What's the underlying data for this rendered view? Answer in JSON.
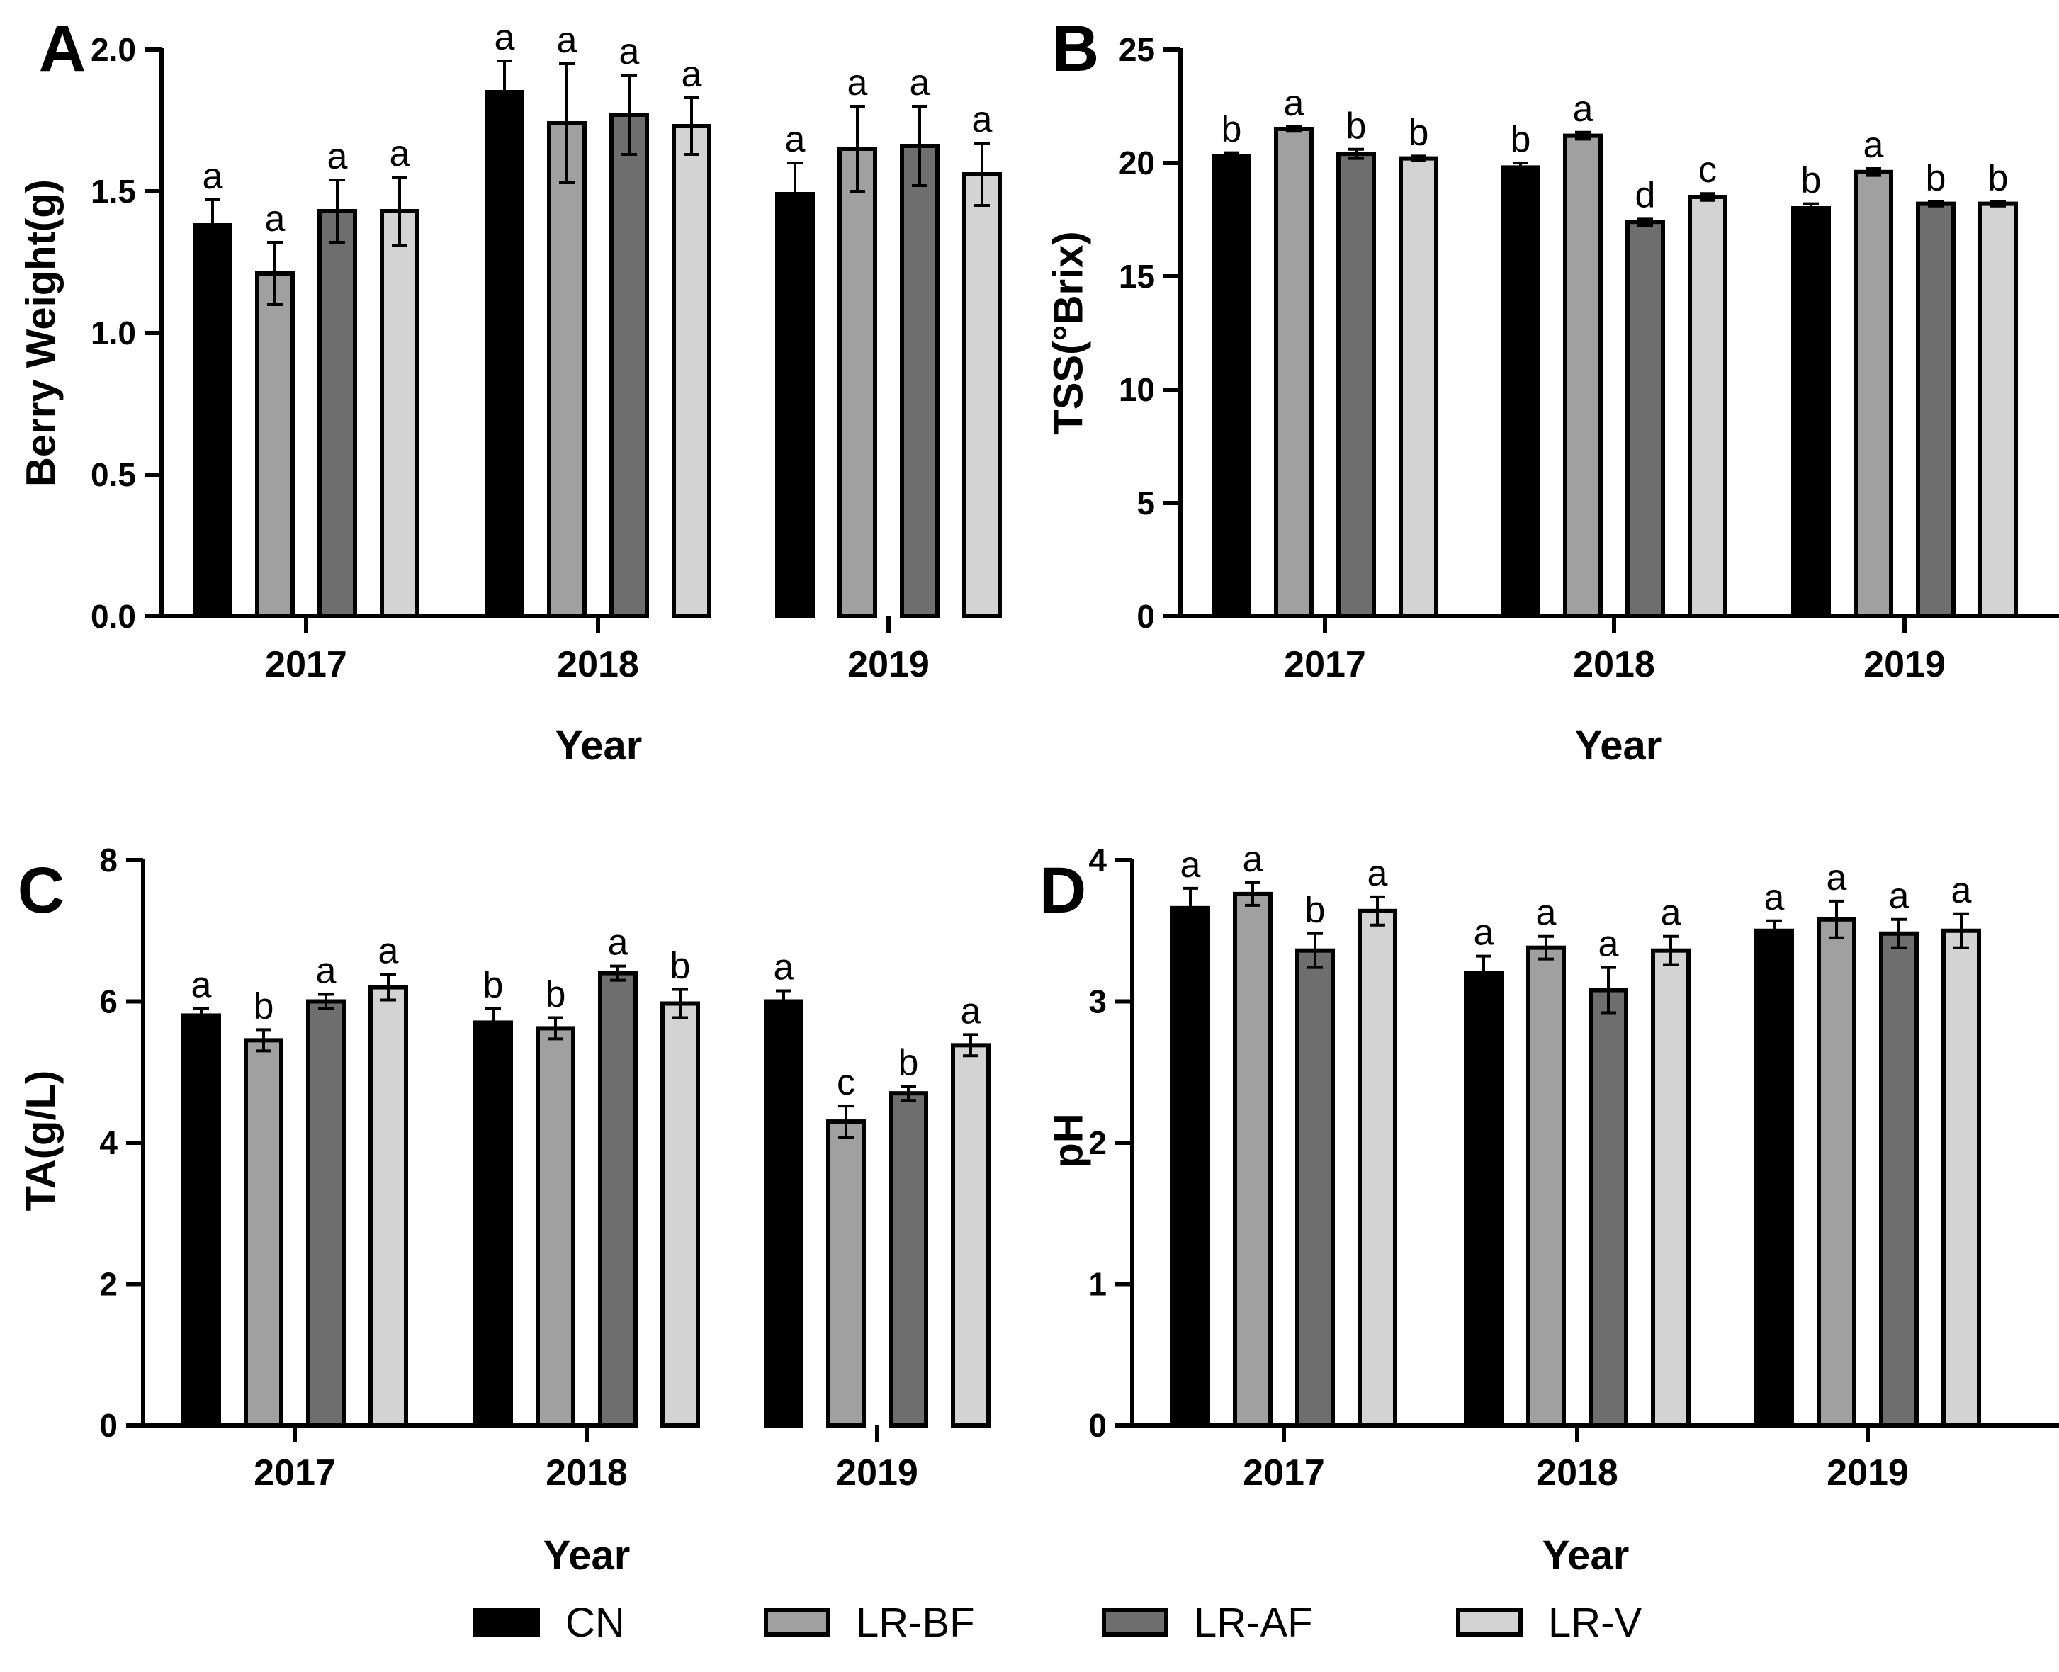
{
  "series_styles": [
    {
      "name": "CN",
      "color": "#000000"
    },
    {
      "name": "LR-BF",
      "color": "#a0a0a0"
    },
    {
      "name": "LR-AF",
      "color": "#6e6e6e"
    },
    {
      "name": "LR-V",
      "color": "#d3d3d3"
    }
  ],
  "legend": {
    "items": [
      "CN",
      "LR-BF",
      "LR-AF",
      "LR-V"
    ]
  },
  "chart_data": [
    {
      "panel": "A",
      "type": "bar",
      "title": "",
      "xlabel": "Year",
      "ylabel": "Berry Weight(g)",
      "categories": [
        "2017",
        "2018",
        "2019"
      ],
      "ylim": [
        0,
        2.0
      ],
      "yticks": [
        "0.0",
        "0.5",
        "1.0",
        "1.5",
        "2.0"
      ],
      "series": [
        {
          "name": "CN",
          "values": [
            1.38,
            1.85,
            1.49
          ],
          "errors": [
            0.09,
            0.11,
            0.11
          ],
          "letters": [
            "a",
            "a",
            "a"
          ]
        },
        {
          "name": "LR-BF",
          "values": [
            1.21,
            1.74,
            1.65
          ],
          "errors": [
            0.11,
            0.21,
            0.15
          ],
          "letters": [
            "a",
            "a",
            "a"
          ]
        },
        {
          "name": "LR-AF",
          "values": [
            1.43,
            1.77,
            1.66
          ],
          "errors": [
            0.11,
            0.14,
            0.14
          ],
          "letters": [
            "a",
            "a",
            "a"
          ]
        },
        {
          "name": "LR-V",
          "values": [
            1.43,
            1.73,
            1.56
          ],
          "errors": [
            0.12,
            0.1,
            0.11
          ],
          "letters": [
            "a",
            "a",
            "a"
          ]
        }
      ]
    },
    {
      "panel": "B",
      "type": "bar",
      "title": "",
      "xlabel": "Year",
      "ylabel": "TSS(°Brix)",
      "categories": [
        "2017",
        "2018",
        "2019"
      ],
      "ylim": [
        0,
        25
      ],
      "yticks": [
        "0",
        "5",
        "10",
        "15",
        "20",
        "25"
      ],
      "series": [
        {
          "name": "CN",
          "values": [
            20.3,
            19.8,
            18.0
          ],
          "errors": [
            0.15,
            0.2,
            0.2
          ],
          "letters": [
            "b",
            "b",
            "b"
          ]
        },
        {
          "name": "LR-BF",
          "values": [
            21.5,
            21.2,
            19.6
          ],
          "errors": [
            0.1,
            0.15,
            0.15
          ],
          "letters": [
            "a",
            "a",
            "a"
          ]
        },
        {
          "name": "LR-AF",
          "values": [
            20.4,
            17.4,
            18.2
          ],
          "errors": [
            0.2,
            0.15,
            0.1
          ],
          "letters": [
            "b",
            "d",
            "b"
          ]
        },
        {
          "name": "LR-V",
          "values": [
            20.2,
            18.5,
            18.2
          ],
          "errors": [
            0.1,
            0.15,
            0.1
          ],
          "letters": [
            "b",
            "c",
            "b"
          ]
        }
      ]
    },
    {
      "panel": "C",
      "type": "bar",
      "title": "",
      "xlabel": "Year",
      "ylabel": "TA(g/L)",
      "categories": [
        "2017",
        "2018",
        "2019"
      ],
      "ylim": [
        0,
        8
      ],
      "yticks": [
        "0",
        "2",
        "4",
        "6",
        "8"
      ],
      "series": [
        {
          "name": "CN",
          "values": [
            5.8,
            5.7,
            6.0
          ],
          "errors": [
            0.1,
            0.2,
            0.15
          ],
          "letters": [
            "a",
            "b",
            "a"
          ]
        },
        {
          "name": "LR-BF",
          "values": [
            5.45,
            5.62,
            4.3
          ],
          "errors": [
            0.15,
            0.15,
            0.22
          ],
          "letters": [
            "b",
            "b",
            "c"
          ]
        },
        {
          "name": "LR-AF",
          "values": [
            6.0,
            6.4,
            4.7
          ],
          "errors": [
            0.1,
            0.1,
            0.1
          ],
          "letters": [
            "a",
            "a",
            "b"
          ]
        },
        {
          "name": "LR-V",
          "values": [
            6.2,
            5.97,
            5.38
          ],
          "errors": [
            0.18,
            0.2,
            0.15
          ],
          "letters": [
            "a",
            "b",
            "a"
          ]
        }
      ]
    },
    {
      "panel": "D",
      "type": "bar",
      "title": "",
      "xlabel": "Year",
      "ylabel": "pH",
      "categories": [
        "2017",
        "2018",
        "2019"
      ],
      "ylim": [
        0,
        4
      ],
      "yticks": [
        "0",
        "1",
        "2",
        "3",
        "4"
      ],
      "series": [
        {
          "name": "CN",
          "values": [
            3.66,
            3.2,
            3.5
          ],
          "errors": [
            0.14,
            0.12,
            0.07
          ],
          "letters": [
            "a",
            "a",
            "a"
          ]
        },
        {
          "name": "LR-BF",
          "values": [
            3.76,
            3.38,
            3.58
          ],
          "errors": [
            0.08,
            0.08,
            0.13
          ],
          "letters": [
            "a",
            "a",
            "a"
          ]
        },
        {
          "name": "LR-AF",
          "values": [
            3.36,
            3.08,
            3.48
          ],
          "errors": [
            0.12,
            0.16,
            0.1
          ],
          "letters": [
            "b",
            "a",
            "a"
          ]
        },
        {
          "name": "LR-V",
          "values": [
            3.64,
            3.36,
            3.5
          ],
          "errors": [
            0.1,
            0.1,
            0.12
          ],
          "letters": [
            "a",
            "a",
            "a"
          ]
        }
      ]
    }
  ]
}
